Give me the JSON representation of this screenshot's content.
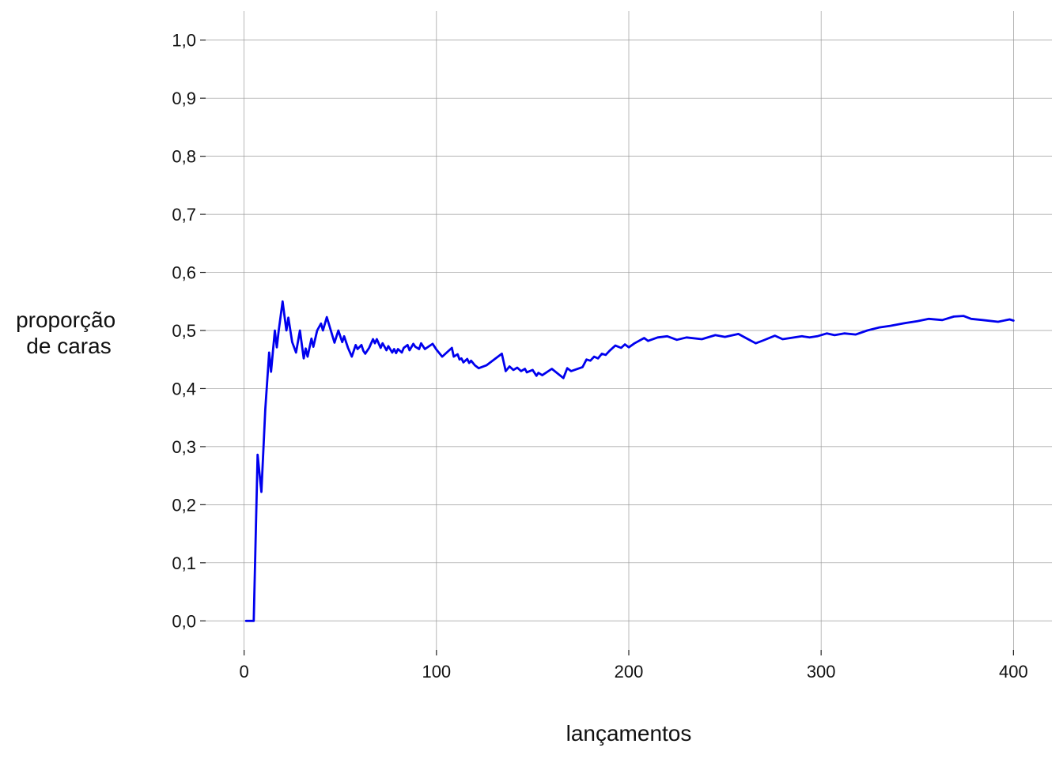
{
  "chart_data": {
    "type": "line",
    "xlabel": "lançamentos",
    "ylabel": [
      "proporção",
      "de caras"
    ],
    "xlim": [
      -20,
      420
    ],
    "ylim": [
      -0.05,
      1.05
    ],
    "xticks": [
      0,
      100,
      200,
      300,
      400
    ],
    "xtick_labels": [
      "0",
      "100",
      "200",
      "300",
      "400"
    ],
    "yticks": [
      0.0,
      0.1,
      0.2,
      0.3,
      0.4,
      0.5,
      0.6,
      0.7,
      0.8,
      0.9,
      1.0
    ],
    "ytick_labels": [
      "0,0",
      "0,1",
      "0,2",
      "0,3",
      "0,4",
      "0,5",
      "0,6",
      "0,7",
      "0,8",
      "0,9",
      "1,0"
    ],
    "grid": true,
    "color": "#0000ee",
    "series": [
      {
        "x": [
          1,
          5,
          7,
          9,
          11,
          13,
          14,
          16,
          17,
          18,
          20,
          22,
          23,
          25,
          27,
          29,
          31,
          32,
          33,
          35,
          36,
          38,
          40,
          41,
          43,
          47,
          49,
          51,
          52,
          54,
          56,
          58,
          59,
          61,
          62,
          63,
          65,
          67,
          68,
          69,
          71,
          72,
          73,
          74,
          75,
          77,
          78,
          79,
          80,
          82,
          83,
          85,
          86,
          88,
          89,
          91,
          92,
          94,
          98,
          100,
          103,
          108,
          109,
          111,
          112,
          113,
          114,
          116,
          117,
          118,
          120,
          122,
          126,
          134,
          136,
          138,
          140,
          142,
          144,
          146,
          147,
          150,
          152,
          153,
          155,
          160,
          166,
          168,
          170,
          176,
          178,
          180,
          182,
          184,
          186,
          188,
          190,
          193,
          196,
          198,
          200,
          203,
          208,
          210,
          215,
          220,
          225,
          230,
          238,
          245,
          250,
          257,
          262,
          266,
          270,
          276,
          280,
          284,
          290,
          294,
          298,
          303,
          307,
          312,
          318,
          324,
          330,
          336,
          344,
          350,
          356,
          363,
          369,
          374,
          378,
          384,
          392,
          398,
          400
        ],
        "y": [
          0.0,
          0.0,
          0.286,
          0.222,
          0.364,
          0.462,
          0.429,
          0.5,
          0.471,
          0.5,
          0.55,
          0.5,
          0.522,
          0.48,
          0.462,
          0.5,
          0.452,
          0.469,
          0.455,
          0.486,
          0.472,
          0.5,
          0.512,
          0.5,
          0.523,
          0.479,
          0.5,
          0.48,
          0.49,
          0.47,
          0.455,
          0.475,
          0.468,
          0.475,
          0.465,
          0.46,
          0.47,
          0.485,
          0.478,
          0.485,
          0.47,
          0.478,
          0.472,
          0.466,
          0.473,
          0.462,
          0.468,
          0.461,
          0.468,
          0.462,
          0.47,
          0.475,
          0.466,
          0.477,
          0.472,
          0.468,
          0.478,
          0.468,
          0.477,
          0.467,
          0.455,
          0.47,
          0.455,
          0.459,
          0.45,
          0.452,
          0.445,
          0.451,
          0.444,
          0.448,
          0.44,
          0.435,
          0.44,
          0.46,
          0.43,
          0.438,
          0.432,
          0.436,
          0.43,
          0.434,
          0.428,
          0.432,
          0.422,
          0.427,
          0.423,
          0.434,
          0.418,
          0.435,
          0.43,
          0.437,
          0.45,
          0.448,
          0.455,
          0.452,
          0.46,
          0.458,
          0.465,
          0.474,
          0.47,
          0.476,
          0.471,
          0.478,
          0.487,
          0.482,
          0.488,
          0.49,
          0.484,
          0.488,
          0.485,
          0.492,
          0.489,
          0.494,
          0.485,
          0.478,
          0.483,
          0.491,
          0.485,
          0.487,
          0.49,
          0.488,
          0.49,
          0.495,
          0.492,
          0.495,
          0.493,
          0.5,
          0.505,
          0.508,
          0.513,
          0.516,
          0.52,
          0.518,
          0.524,
          0.525,
          0.52,
          0.518,
          0.515,
          0.519,
          0.517
        ]
      }
    ]
  }
}
